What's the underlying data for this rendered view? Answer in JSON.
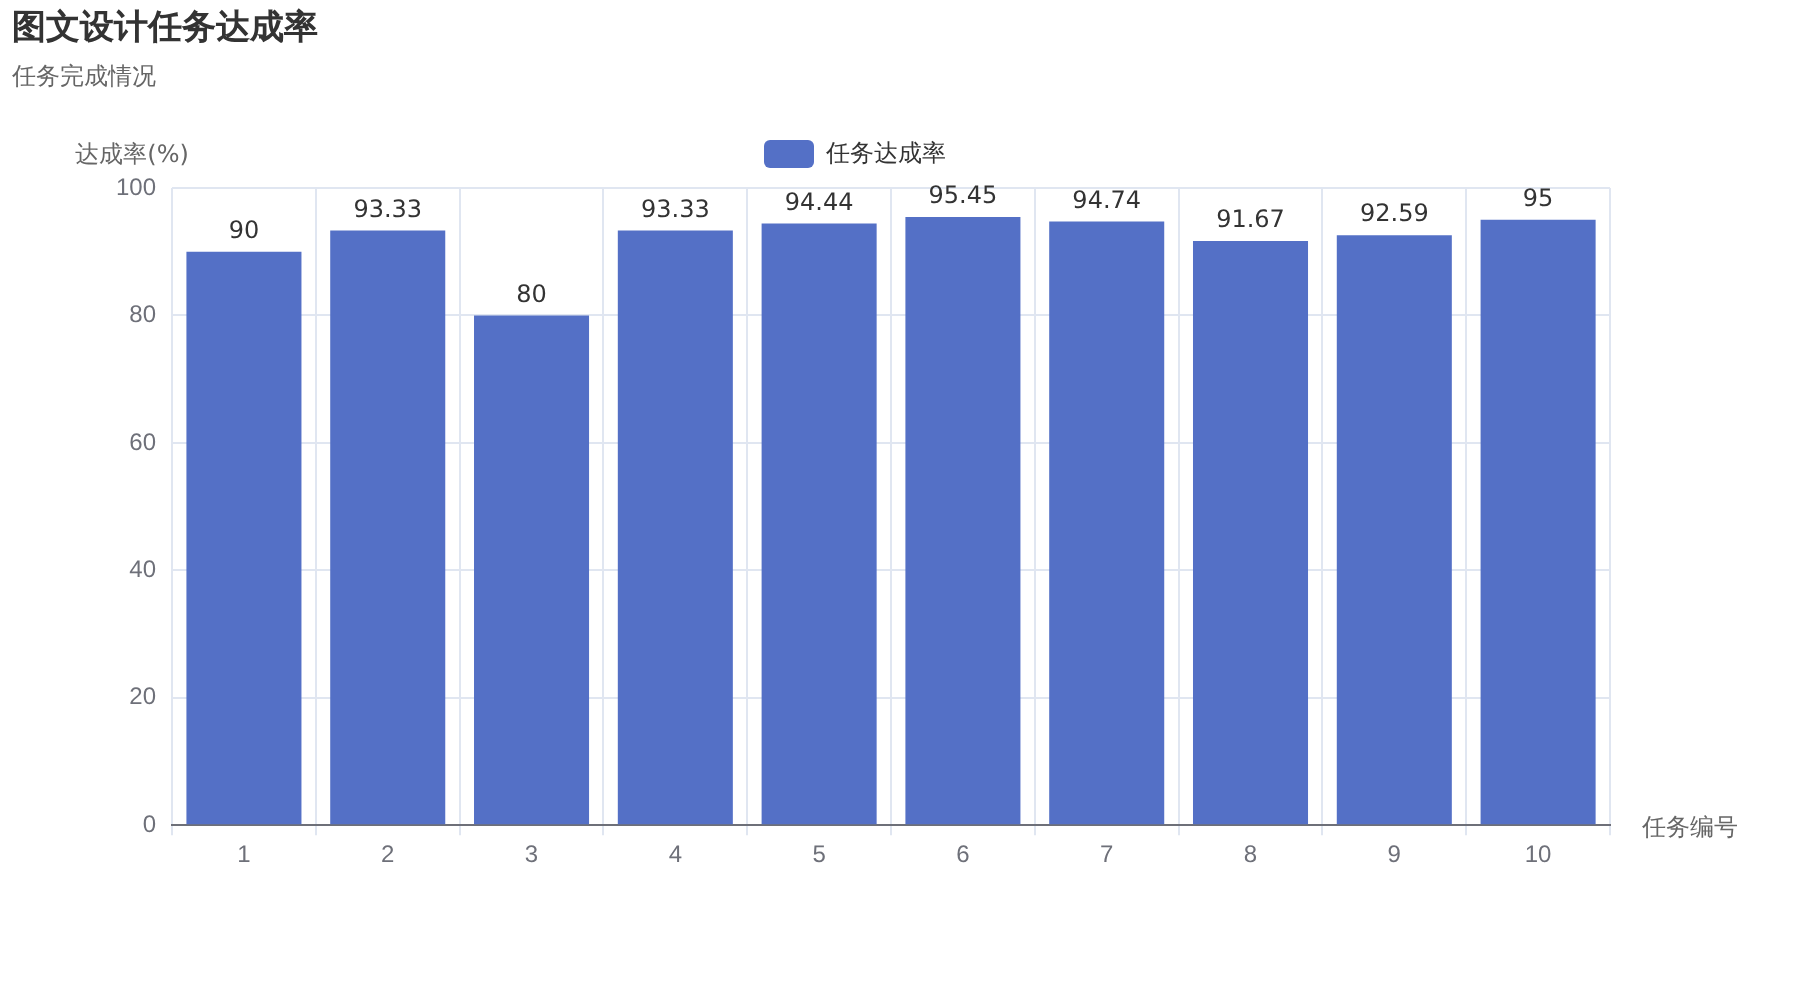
{
  "chart_data": {
    "type": "bar",
    "title": "图文设计任务达成率",
    "subtitle": "任务完成情况",
    "xlabel": "任务编号",
    "ylabel": "达成率(%)",
    "categories": [
      "1",
      "2",
      "3",
      "4",
      "5",
      "6",
      "7",
      "8",
      "9",
      "10"
    ],
    "series": [
      {
        "name": "任务达成率",
        "color": "#5470c6",
        "values": [
          90,
          93.33,
          80,
          93.33,
          94.44,
          95.45,
          94.74,
          91.67,
          92.59,
          95
        ]
      }
    ],
    "ylim": [
      0,
      100
    ],
    "yticks": [
      0,
      20,
      40,
      60,
      80,
      100
    ],
    "grid": true,
    "legend": "top",
    "data_labels": true
  }
}
